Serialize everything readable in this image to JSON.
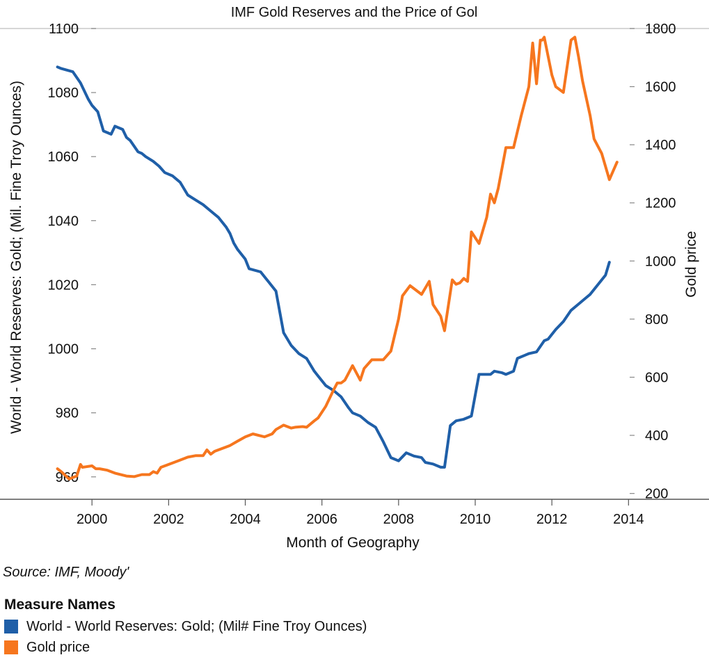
{
  "chart_data": {
    "type": "line",
    "title": "IMF Gold Reserves and the Price of Gol",
    "xlabel": "Month of Geography",
    "ylabel_left": "World -  World Reserves: Gold; (Mil. Fine Troy Ounces)",
    "ylabel_right": "Gold price",
    "x_ticks": [
      "2000",
      "2002",
      "2004",
      "2006",
      "2008",
      "2010",
      "2012",
      "2014"
    ],
    "y_left_ticks": [
      "960",
      "980",
      "1000",
      "1020",
      "1040",
      "1060",
      "1080",
      "1100"
    ],
    "y_right_ticks": [
      "200",
      "400",
      "600",
      "800",
      "1000",
      "1200",
      "1400",
      "1600",
      "1800"
    ],
    "ylim_left": [
      953,
      1100
    ],
    "ylim_right": [
      180,
      1800
    ],
    "xlim": [
      1997.6,
      2016.1
    ],
    "grid": false,
    "source": "Source: IMF, Moody'",
    "legend": {
      "title": "Measure Names",
      "position": "bottom-left",
      "items": [
        {
          "label": "World -  World Reserves: Gold; (Mil# Fine Troy Ounces)",
          "color": "#1f5fa8"
        },
        {
          "label": "Gold price",
          "color": "#f6761e"
        }
      ]
    },
    "series": [
      {
        "name": "World -  World Reserves: Gold; (Mil# Fine Troy Ounces)",
        "axis": "left",
        "color": "#1f5fa8",
        "x": [
          1999.1,
          1999.2,
          1999.5,
          1999.7,
          1999.9,
          2000.0,
          2000.15,
          2000.3,
          2000.5,
          2000.6,
          2000.8,
          2000.9,
          2001.0,
          2001.2,
          2001.3,
          2001.4,
          2001.6,
          2001.75,
          2001.9,
          2002.1,
          2002.3,
          2002.5,
          2002.7,
          2002.9,
          2003.1,
          2003.3,
          2003.5,
          2003.6,
          2003.7,
          2003.8,
          2004.0,
          2004.1,
          2004.4,
          2004.6,
          2004.8,
          2005.0,
          2005.2,
          2005.4,
          2005.6,
          2005.8,
          2005.9,
          2006.1,
          2006.3,
          2006.5,
          2006.7,
          2006.8,
          2007.0,
          2007.2,
          2007.4,
          2007.6,
          2007.8,
          2007.9,
          2008.0,
          2008.2,
          2008.4,
          2008.6,
          2008.7,
          2008.9,
          2009.1,
          2009.2,
          2009.35,
          2009.5,
          2009.7,
          2009.8,
          2009.9,
          2010.1,
          2010.2,
          2010.4,
          2010.5,
          2010.7,
          2010.8,
          2011.0,
          2011.1,
          2011.3,
          2011.4,
          2011.6,
          2011.8,
          2011.9,
          2012.1,
          2012.3,
          2012.5,
          2012.7,
          2012.9,
          2013.0,
          2013.2,
          2013.4,
          2013.5
        ],
        "y": [
          1088,
          1087.5,
          1086.5,
          1083,
          1078,
          1076,
          1074,
          1068,
          1067,
          1069.5,
          1068.5,
          1066,
          1065,
          1061.5,
          1061,
          1060,
          1058.5,
          1057,
          1055,
          1054,
          1052,
          1048,
          1046.5,
          1045,
          1043,
          1041,
          1038,
          1036,
          1033,
          1031,
          1028,
          1025,
          1024,
          1021,
          1018,
          1005,
          1001,
          998.5,
          997,
          993,
          991.5,
          988.5,
          987,
          985,
          981.5,
          980,
          979,
          977,
          975.5,
          971,
          966,
          965.5,
          965,
          967.5,
          966.5,
          966,
          964.5,
          964,
          963,
          963,
          976,
          977.5,
          978,
          978.5,
          979,
          992,
          992,
          992,
          993,
          992.5,
          992,
          993,
          997,
          998,
          998.5,
          999,
          1002.5,
          1003,
          1006,
          1008.5,
          1012,
          1014,
          1016,
          1017,
          1020,
          1023,
          1027
        ]
      },
      {
        "name": "Gold price",
        "axis": "right",
        "color": "#f6761e",
        "x": [
          1999.1,
          1999.2,
          1999.4,
          1999.6,
          1999.7,
          1999.75,
          1999.85,
          2000.0,
          2000.1,
          2000.2,
          2000.4,
          2000.6,
          2000.9,
          2001.1,
          2001.3,
          2001.5,
          2001.6,
          2001.7,
          2001.8,
          2002.0,
          2002.3,
          2002.5,
          2002.7,
          2002.9,
          2003.0,
          2003.1,
          2003.2,
          2003.4,
          2003.6,
          2003.8,
          2004.0,
          2004.2,
          2004.5,
          2004.7,
          2004.8,
          2005.0,
          2005.2,
          2005.3,
          2005.5,
          2005.6,
          2005.8,
          2005.9,
          2006.1,
          2006.3,
          2006.4,
          2006.5,
          2006.6,
          2006.8,
          2007.0,
          2007.1,
          2007.3,
          2007.5,
          2007.6,
          2007.8,
          2008.0,
          2008.1,
          2008.3,
          2008.4,
          2008.6,
          2008.8,
          2008.9,
          2009.1,
          2009.2,
          2009.4,
          2009.5,
          2009.6,
          2009.7,
          2009.8,
          2009.9,
          2010.1,
          2010.3,
          2010.4,
          2010.5,
          2010.6,
          2010.8,
          2011.0,
          2011.2,
          2011.4,
          2011.5,
          2011.6,
          2011.7,
          2011.75,
          2011.8,
          2012.0,
          2012.1,
          2012.3,
          2012.5,
          2012.6,
          2012.7,
          2012.8,
          2013.0,
          2013.1,
          2013.3,
          2013.5,
          2013.7
        ],
        "y": [
          285,
          275,
          250,
          260,
          300,
          290,
          292,
          295,
          285,
          285,
          280,
          270,
          260,
          258,
          265,
          265,
          275,
          270,
          290,
          300,
          315,
          325,
          330,
          330,
          350,
          335,
          345,
          355,
          365,
          380,
          395,
          405,
          395,
          405,
          420,
          435,
          425,
          428,
          430,
          428,
          450,
          460,
          500,
          555,
          580,
          580,
          590,
          640,
          590,
          630,
          660,
          660,
          660,
          690,
          800,
          880,
          915,
          905,
          885,
          930,
          850,
          810,
          760,
          935,
          920,
          925,
          940,
          930,
          1100,
          1060,
          1150,
          1230,
          1200,
          1250,
          1390,
          1390,
          1500,
          1600,
          1750,
          1610,
          1760,
          1760,
          1770,
          1640,
          1600,
          1580,
          1760,
          1770,
          1700,
          1620,
          1500,
          1420,
          1370,
          1280,
          1340
        ]
      }
    ]
  }
}
